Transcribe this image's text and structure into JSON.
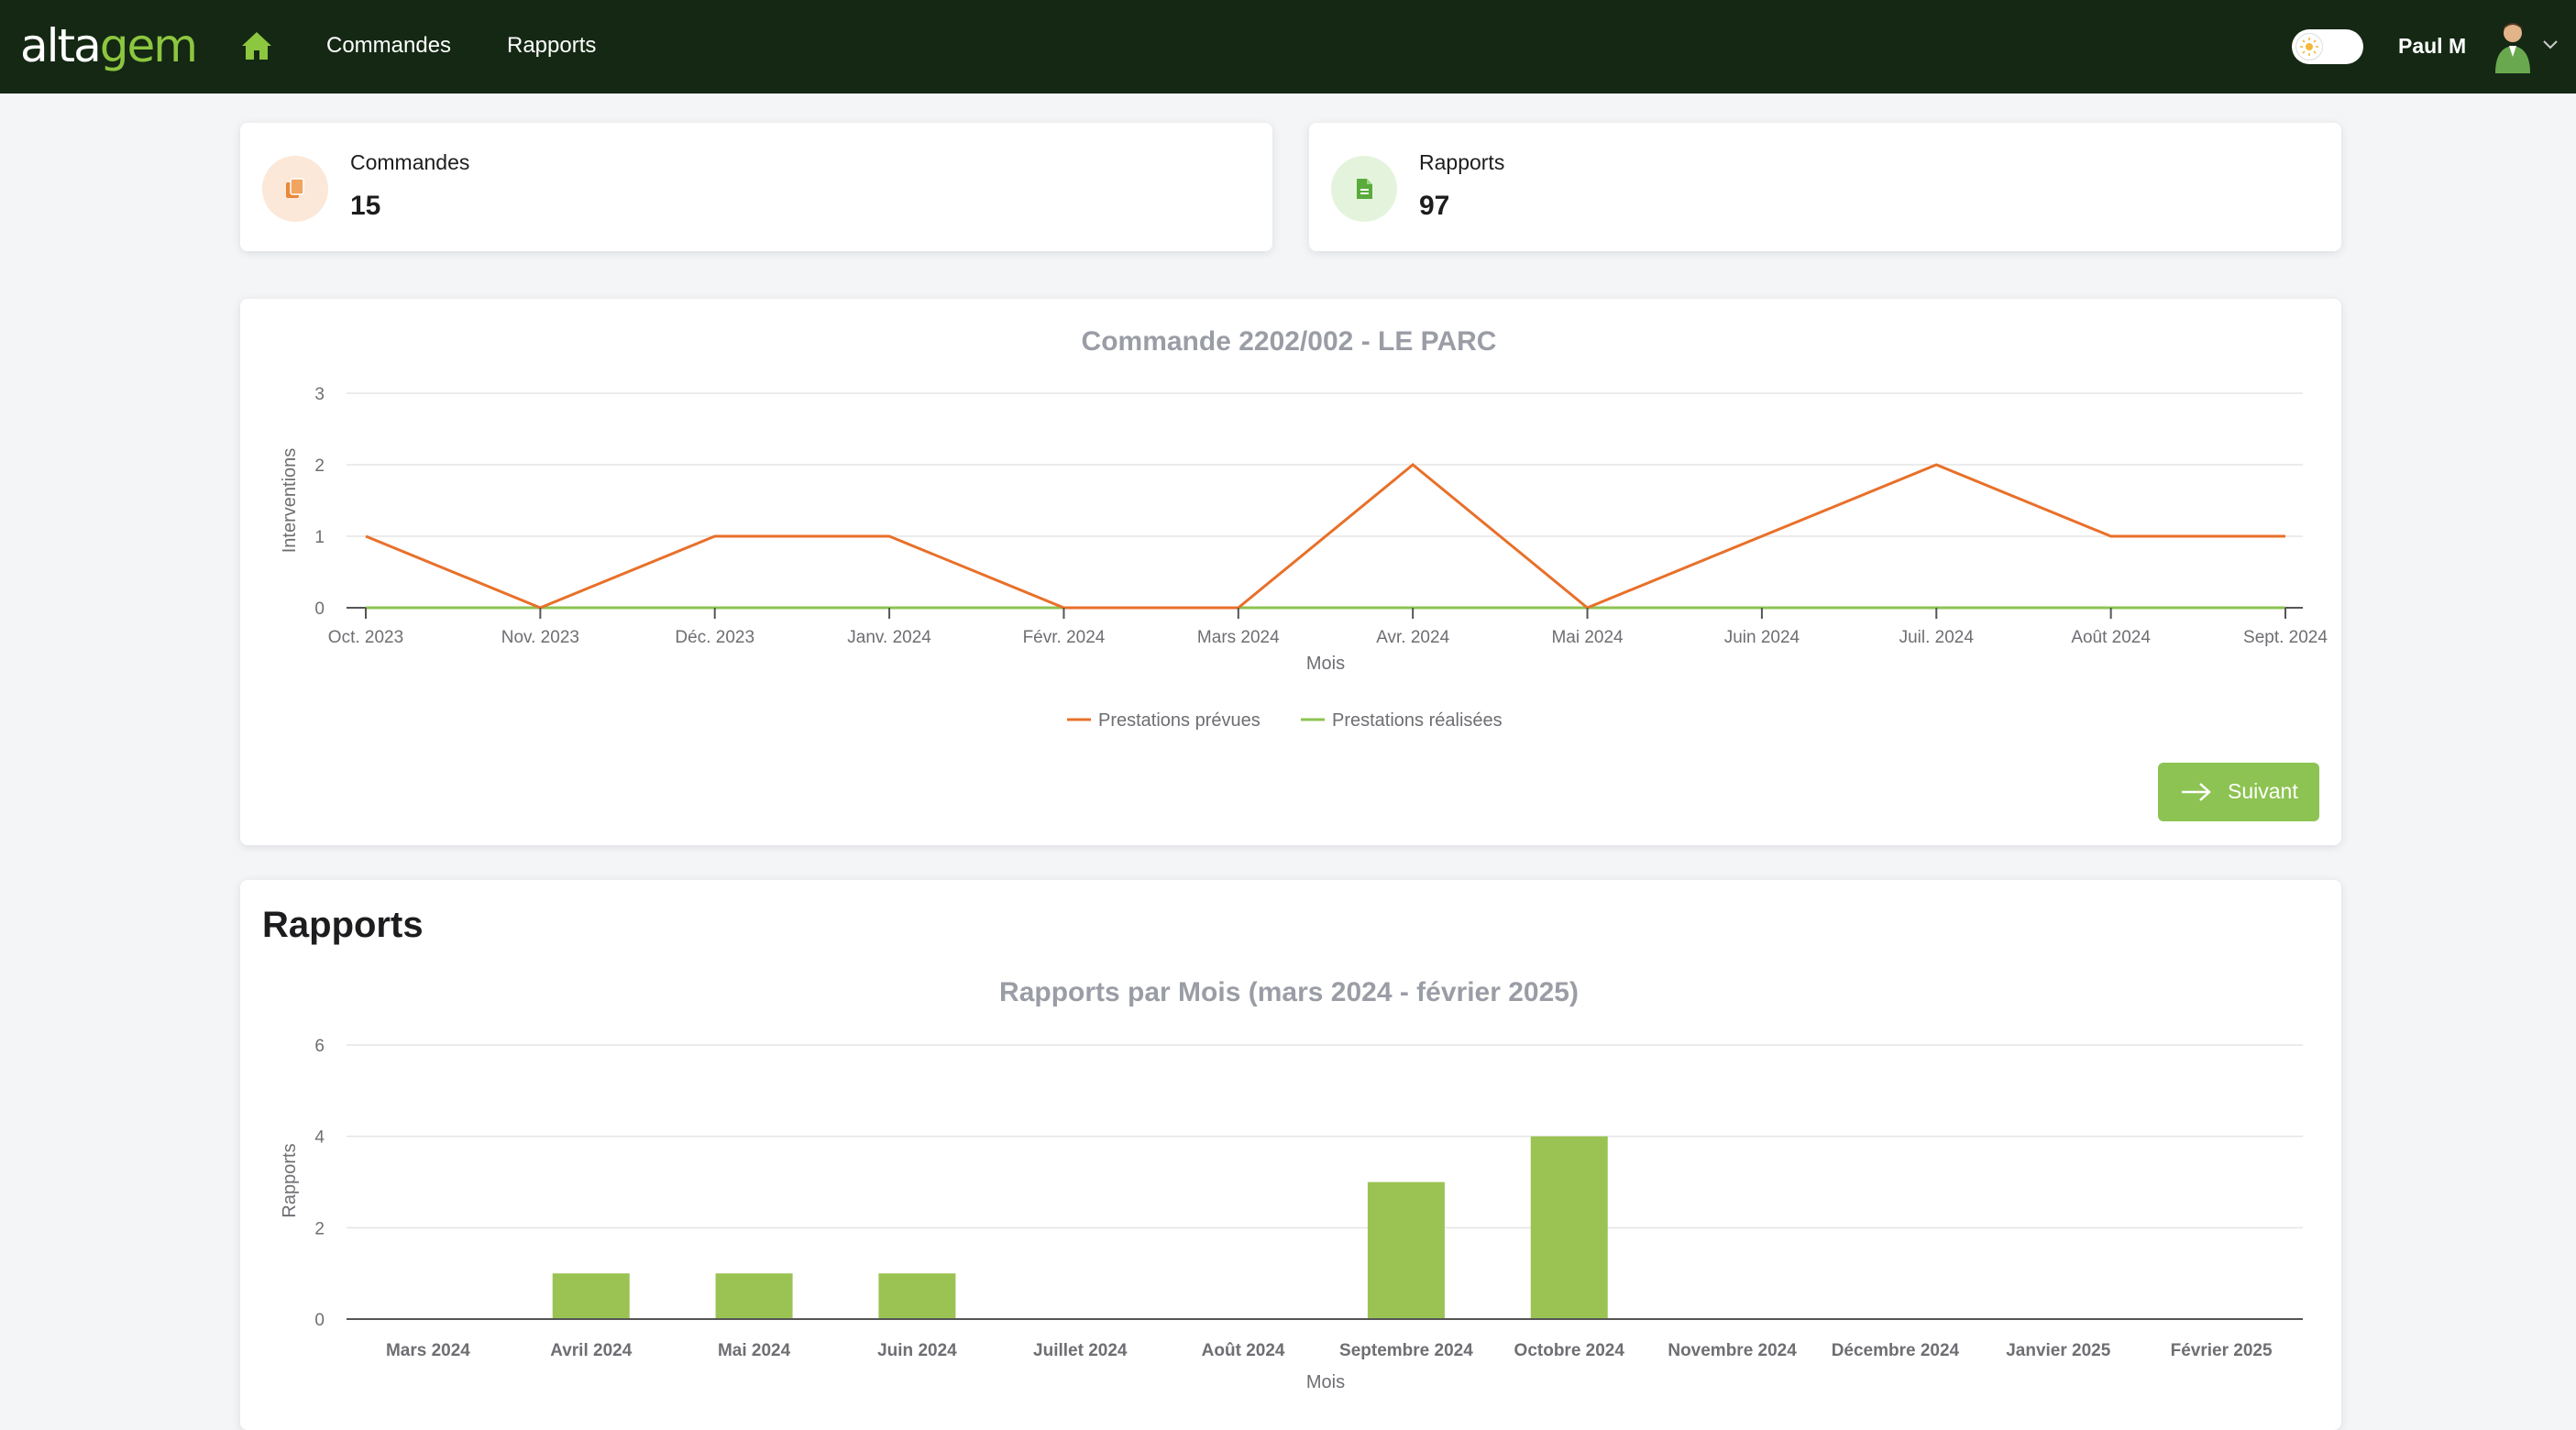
{
  "app": {
    "logo_main": "alta",
    "logo_accent": "gem",
    "user_name": "Paul M",
    "brand_color": "#8dc63f",
    "nav_background": "#142814"
  },
  "nav": {
    "home_icon": "home-icon",
    "links": [
      {
        "label": "Commandes"
      },
      {
        "label": "Rapports"
      }
    ],
    "theme_toggle_icon": "sun-icon"
  },
  "stats": [
    {
      "label": "Commandes",
      "value": "15",
      "icon": "copy-icon",
      "icon_color": "#e8893a"
    },
    {
      "label": "Rapports",
      "value": "97",
      "icon": "document-icon",
      "icon_color": "#5aaa3c"
    }
  ],
  "next_button": {
    "label": "Suivant",
    "icon": "arrow-right-icon"
  },
  "reports_section": {
    "title": "Rapports"
  },
  "chart_data": [
    {
      "type": "line",
      "title": "Commande 2202/002 - LE PARC",
      "xlabel": "Mois",
      "ylabel": "Interventions",
      "ylim": [
        0,
        3
      ],
      "yticks": [
        "0",
        "1",
        "2",
        "3"
      ],
      "grid": true,
      "legend_position": "bottom",
      "categories": [
        "Oct. 2023",
        "Nov. 2023",
        "Déc. 2023",
        "Janv. 2024",
        "Févr. 2024",
        "Mars 2024",
        "Avr. 2024",
        "Mai 2024",
        "Juin 2024",
        "Juil. 2024",
        "Août 2024",
        "Sept. 2024"
      ],
      "series": [
        {
          "name": "Prestations prévues",
          "color": "#e8702a",
          "values": [
            1,
            0,
            1,
            1,
            0,
            0,
            2,
            0,
            1,
            2,
            1,
            1
          ]
        },
        {
          "name": "Prestations réalisées",
          "color": "#8dc352",
          "values": [
            0,
            0,
            0,
            0,
            0,
            0,
            0,
            0,
            0,
            0,
            0,
            0
          ]
        }
      ]
    },
    {
      "type": "bar",
      "title": "Rapports par Mois (mars 2024 - février 2025)",
      "xlabel": "Mois",
      "ylabel": "Rapports",
      "ylim": [
        0,
        6
      ],
      "yticks": [
        "0",
        "2",
        "4",
        "6"
      ],
      "grid": true,
      "color": "#9bc353",
      "categories": [
        "Mars 2024",
        "Avril 2024",
        "Mai 2024",
        "Juin 2024",
        "Juillet 2024",
        "Août 2024",
        "Septembre 2024",
        "Octobre 2024",
        "Novembre 2024",
        "Décembre 2024",
        "Janvier 2025",
        "Février 2025"
      ],
      "values": [
        0,
        1,
        1,
        1,
        0,
        0,
        3,
        4,
        0,
        0,
        0,
        0
      ]
    }
  ]
}
